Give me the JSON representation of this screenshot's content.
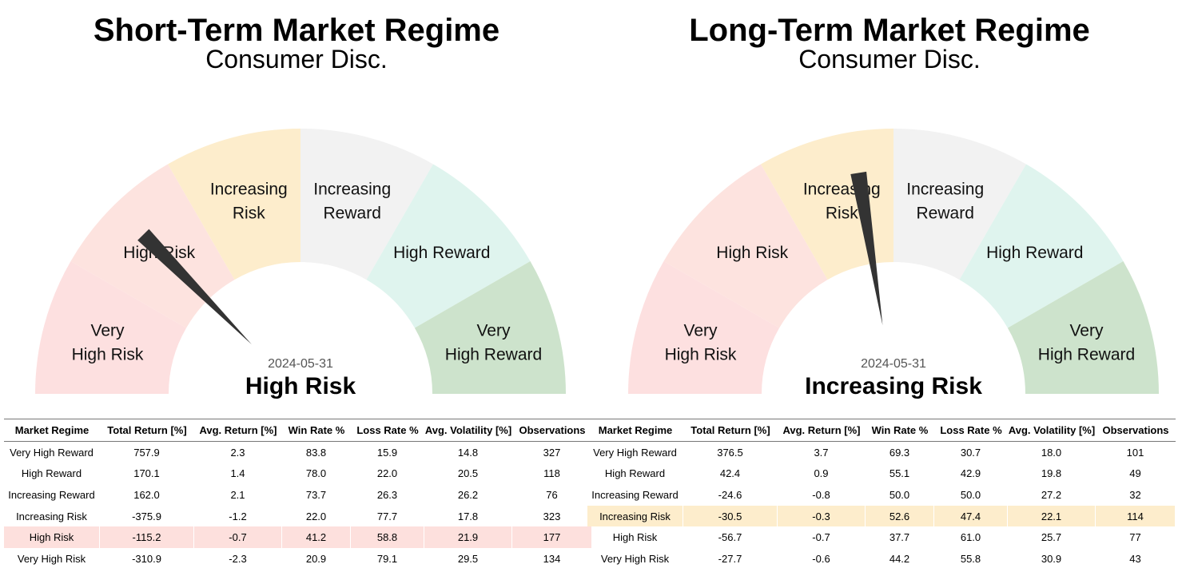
{
  "colors": {
    "very_high_risk": "#fde0e0",
    "high_risk": "#fde3df",
    "increasing_risk": "#fdedcc",
    "increasing_reward": "#f2f2f2",
    "high_reward": "#dff4ee",
    "very_high_reward": "#cde3cc",
    "needle": "#333333"
  },
  "segments": [
    {
      "lines": [
        "Very",
        "High Risk"
      ],
      "color": "#fde0e0"
    },
    {
      "lines": [
        "High Risk"
      ],
      "color": "#fde3df"
    },
    {
      "lines": [
        "Increasing",
        "Risk"
      ],
      "color": "#fdedcc"
    },
    {
      "lines": [
        "Increasing",
        "Reward"
      ],
      "color": "#f2f2f2"
    },
    {
      "lines": [
        "High Reward"
      ],
      "color": "#dff4ee"
    },
    {
      "lines": [
        "Very",
        "High Reward"
      ],
      "color": "#cde3cc"
    }
  ],
  "columns": [
    "Market Regime",
    "Total Return [%]",
    "Avg. Return [%]",
    "Win Rate %",
    "Loss Rate %",
    "Avg. Volatility [%]",
    "Observations"
  ],
  "panels": [
    {
      "title": "Short-Term Market Regime",
      "subtitle": "Consumer Disc.",
      "date": "2024-05-31",
      "regime": "High Risk",
      "needle_fraction": 0.252,
      "highlight_row": 4,
      "highlight_color": "#fde0dd",
      "chart_data": {
        "type": "table",
        "rows": [
          [
            "Very High Reward",
            "757.9",
            "2.3",
            "83.8",
            "15.9",
            "14.8",
            "327"
          ],
          [
            "High Reward",
            "170.1",
            "1.4",
            "78.0",
            "22.0",
            "20.5",
            "118"
          ],
          [
            "Increasing Reward",
            "162.0",
            "2.1",
            "73.7",
            "26.3",
            "26.2",
            "76"
          ],
          [
            "Increasing Risk",
            "-375.9",
            "-1.2",
            "22.0",
            "77.7",
            "17.8",
            "323"
          ],
          [
            "High Risk",
            "-115.2",
            "-0.7",
            "41.2",
            "58.8",
            "21.9",
            "177"
          ],
          [
            "Very High Risk",
            "-310.9",
            "-2.3",
            "20.9",
            "79.1",
            "29.5",
            "134"
          ]
        ]
      }
    },
    {
      "title": "Long-Term Market Regime",
      "subtitle": "Consumer Disc.",
      "date": "2024-05-31",
      "regime": "Increasing Risk",
      "needle_fraction": 0.45,
      "highlight_row": 3,
      "highlight_color": "#fdedcc",
      "chart_data": {
        "type": "table",
        "rows": [
          [
            "Very High Reward",
            "376.5",
            "3.7",
            "69.3",
            "30.7",
            "18.0",
            "101"
          ],
          [
            "High Reward",
            "42.4",
            "0.9",
            "55.1",
            "42.9",
            "19.8",
            "49"
          ],
          [
            "Increasing Reward",
            "-24.6",
            "-0.8",
            "50.0",
            "50.0",
            "27.2",
            "32"
          ],
          [
            "Increasing Risk",
            "-30.5",
            "-0.3",
            "52.6",
            "47.4",
            "22.1",
            "114"
          ],
          [
            "High Risk",
            "-56.7",
            "-0.7",
            "37.7",
            "61.0",
            "25.7",
            "77"
          ],
          [
            "Very High Risk",
            "-27.7",
            "-0.6",
            "44.2",
            "55.8",
            "30.9",
            "43"
          ]
        ]
      }
    }
  ]
}
